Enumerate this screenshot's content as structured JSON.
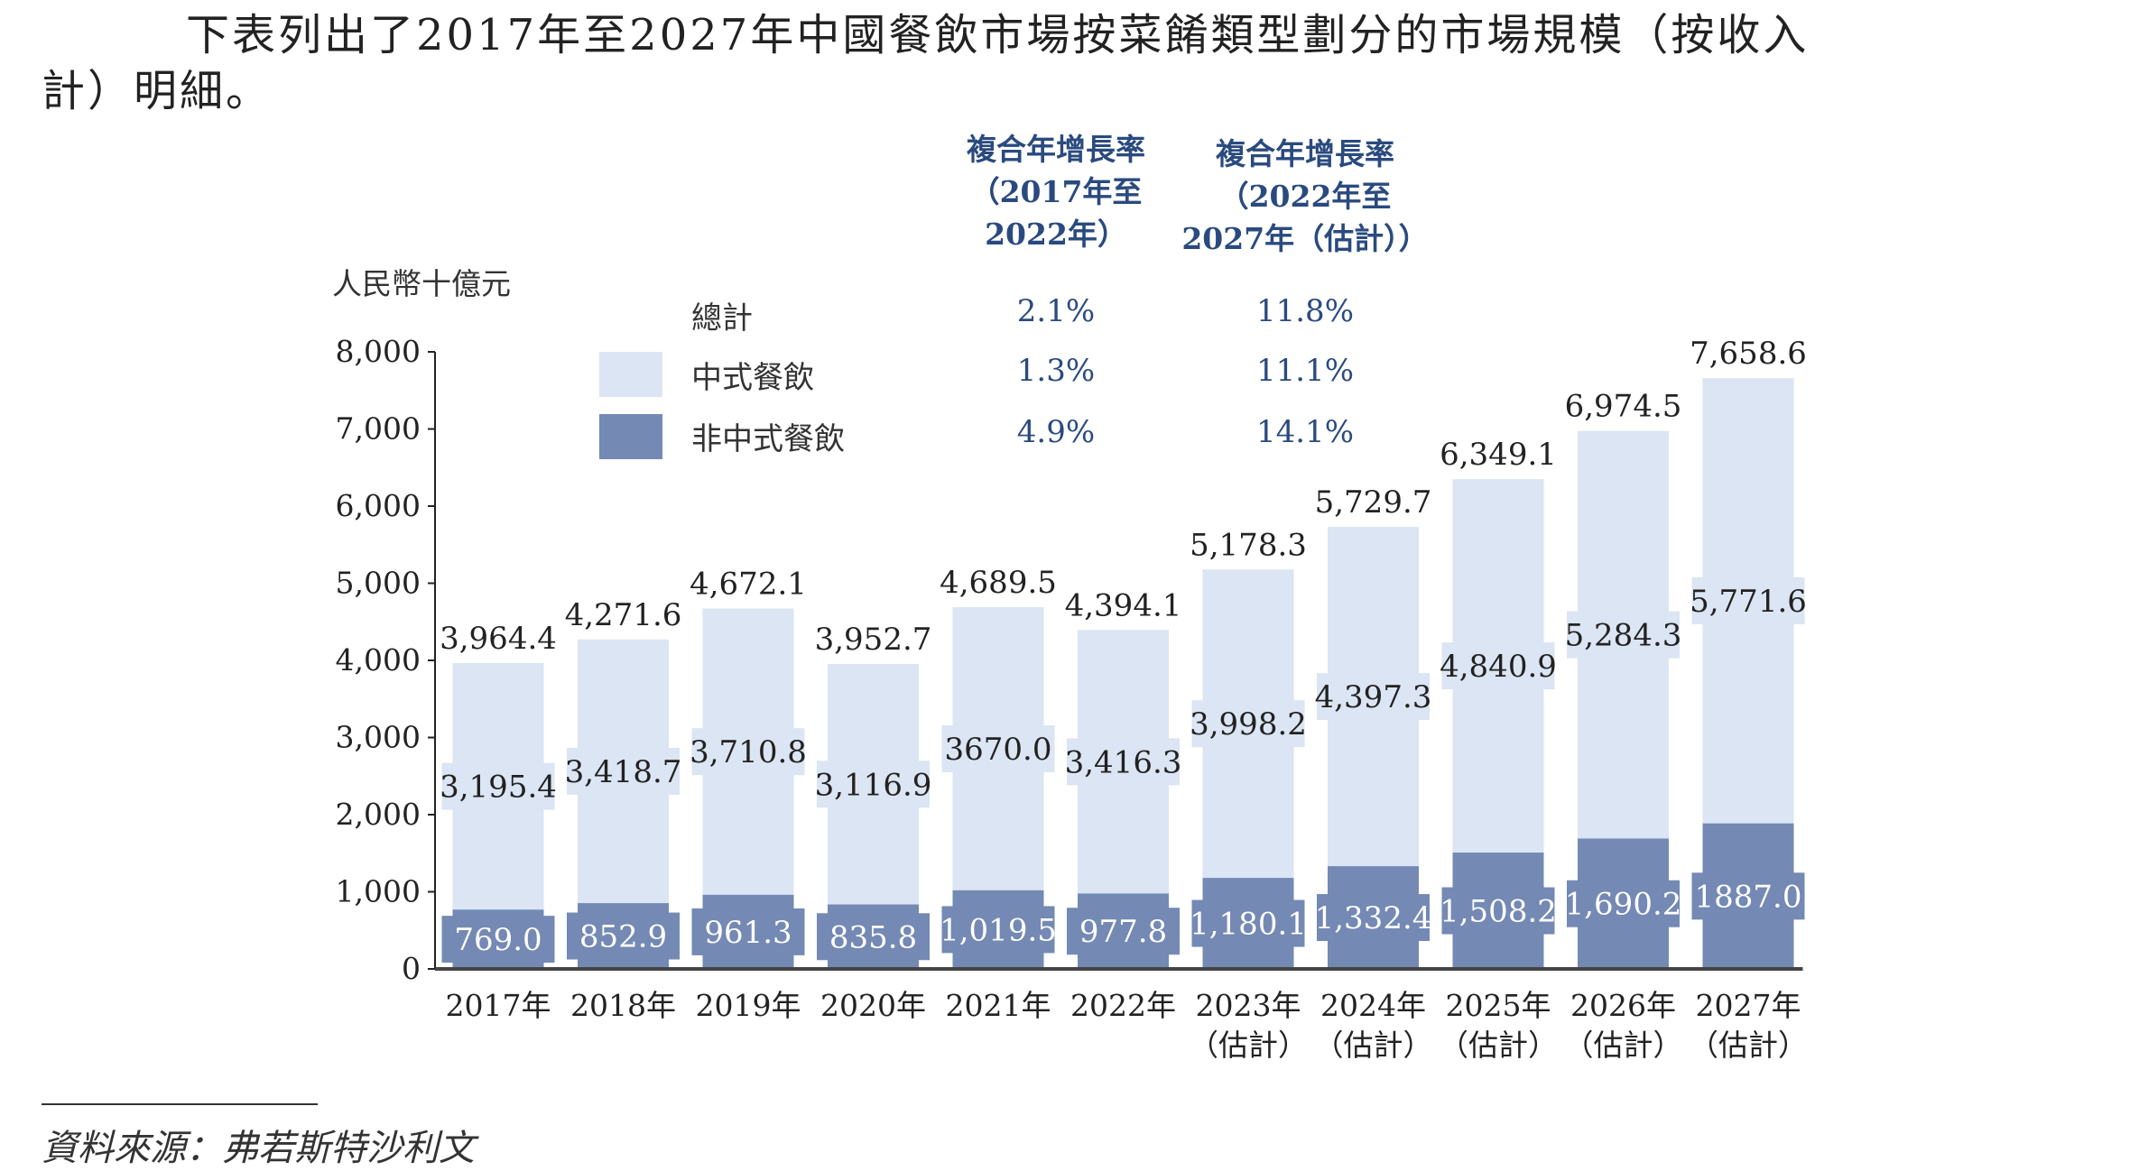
{
  "intro_text": {
    "line1": "下表列出了2017年至2027年中國餐飲市場按菜餚類型劃分的市場規模（按收入",
    "line2": "計）明細。"
  },
  "legend_table": {
    "headers": [
      [
        "複合年增長率",
        "（2017年至",
        "2022年）"
      ],
      [
        "複合年增長率",
        "（2022年至",
        "2027年（估計））"
      ]
    ],
    "rows": [
      {
        "label": "總計",
        "cagr_2017_2022": "2.1%",
        "cagr_2022_2027": "11.8%"
      },
      {
        "label": "中式餐飲",
        "cagr_2017_2022": "1.3%",
        "cagr_2022_2027": "11.1%"
      },
      {
        "label": "非中式餐飲",
        "cagr_2017_2022": "4.9%",
        "cagr_2022_2027": "14.1%"
      }
    ]
  },
  "colors": {
    "chinese": "#dbe5f3",
    "non_chinese": "#7489b4",
    "cagr_text": "#2a4a7f"
  },
  "chart_data": {
    "type": "bar",
    "stacked": true,
    "ylabel": "人民幣十億元",
    "ylim": [
      0,
      8000
    ],
    "yticks": [
      "0",
      "1,000",
      "2,000",
      "3,000",
      "4,000",
      "5,000",
      "6,000",
      "7,000",
      "8,000"
    ],
    "categories": [
      "2017年",
      "2018年",
      "2019年",
      "2020年",
      "2021年",
      "2022年",
      "2023年",
      "2024年",
      "2025年",
      "2026年",
      "2027年"
    ],
    "category_notes": [
      "",
      "",
      "",
      "",
      "",
      "",
      "（估計）",
      "（估計）",
      "（估計）",
      "（估計）",
      "（估計）"
    ],
    "series": [
      {
        "name": "非中式餐飲",
        "values": [
          769.0,
          852.9,
          961.3,
          835.8,
          1019.5,
          977.8,
          1180.1,
          1332.4,
          1508.2,
          1690.2,
          1887.0
        ],
        "labels": [
          "769.0",
          "852.9",
          "961.3",
          "835.8",
          "1,019.5",
          "977.8",
          "1,180.1",
          "1,332.4",
          "1,508.2",
          "1,690.2",
          "1887.0"
        ]
      },
      {
        "name": "中式餐飲",
        "values": [
          3195.4,
          3418.7,
          3710.8,
          3116.9,
          3670.0,
          3416.3,
          3998.2,
          4397.3,
          4840.9,
          5284.3,
          5771.6
        ],
        "labels": [
          "3,195.4",
          "3,418.7",
          "3,710.8",
          "3,116.9",
          "3670.0",
          "3,416.3",
          "3,998.2",
          "4,397.3",
          "4,840.9",
          "5,284.3",
          "5,771.6"
        ]
      }
    ],
    "totals": [
      3964.4,
      4271.6,
      4672.1,
      3952.7,
      4689.5,
      4394.1,
      5178.3,
      5729.7,
      6349.1,
      6974.5,
      7658.6
    ],
    "total_labels": [
      "3,964.4",
      "4,271.6",
      "4,672.1",
      "3,952.7",
      "4,689.5",
      "4,394.1",
      "5,178.3",
      "5,729.7",
      "6,349.1",
      "6,974.5",
      "7,658.6"
    ]
  },
  "source": "資料來源：弗若斯特沙利文"
}
